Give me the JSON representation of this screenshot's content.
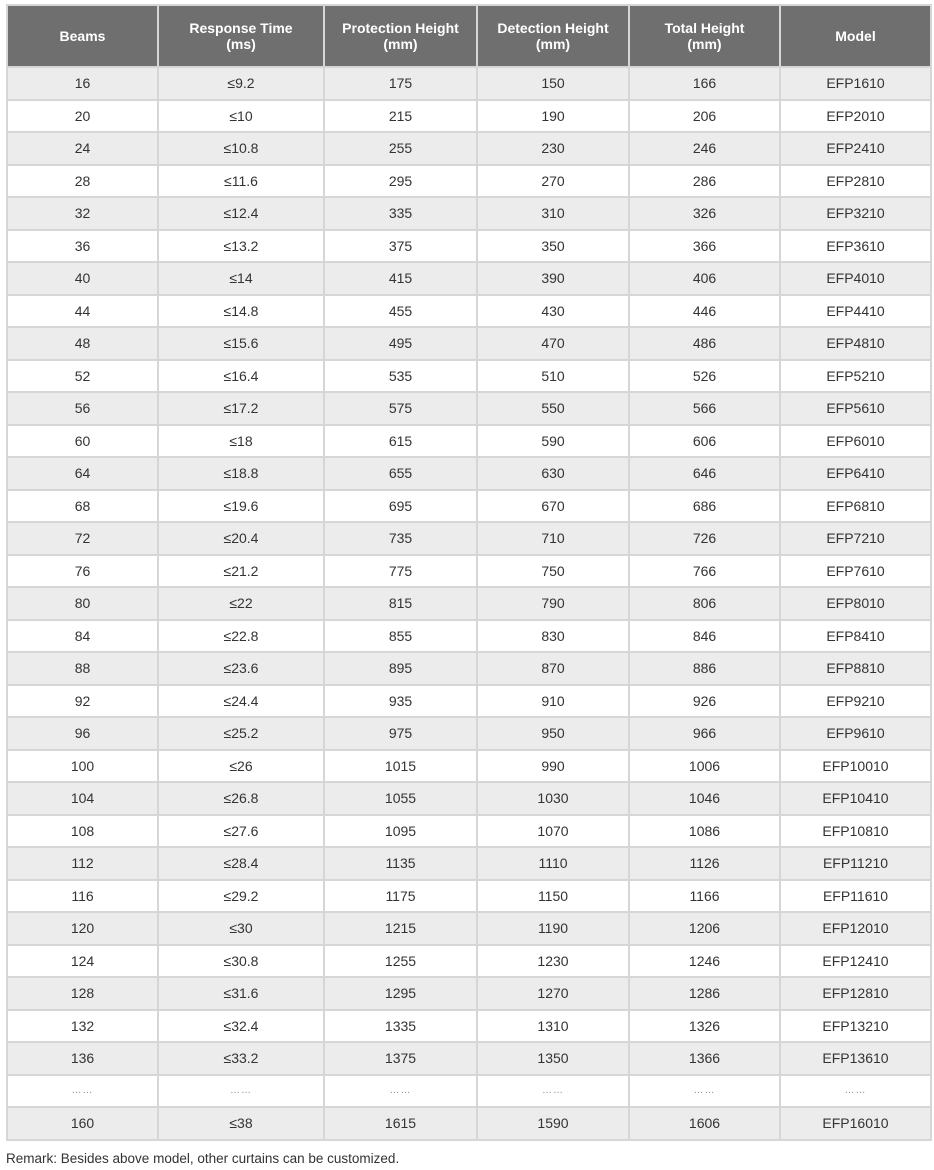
{
  "headers": [
    "Beams",
    "Response Time\n(ms)",
    "Protection Height\n(mm)",
    "Detection Height\n(mm)",
    "Total Height\n(mm)",
    "Model"
  ],
  "rows": [
    [
      "16",
      "≤9.2",
      "175",
      "150",
      "166",
      "EFP1610"
    ],
    [
      "20",
      "≤10",
      "215",
      "190",
      "206",
      "EFP2010"
    ],
    [
      "24",
      "≤10.8",
      "255",
      "230",
      "246",
      "EFP2410"
    ],
    [
      "28",
      "≤11.6",
      "295",
      "270",
      "286",
      "EFP2810"
    ],
    [
      "32",
      "≤12.4",
      "335",
      "310",
      "326",
      "EFP3210"
    ],
    [
      "36",
      "≤13.2",
      "375",
      "350",
      "366",
      "EFP3610"
    ],
    [
      "40",
      "≤14",
      "415",
      "390",
      "406",
      "EFP4010"
    ],
    [
      "44",
      "≤14.8",
      "455",
      "430",
      "446",
      "EFP4410"
    ],
    [
      "48",
      "≤15.6",
      "495",
      "470",
      "486",
      "EFP4810"
    ],
    [
      "52",
      "≤16.4",
      "535",
      "510",
      "526",
      "EFP5210"
    ],
    [
      "56",
      "≤17.2",
      "575",
      "550",
      "566",
      "EFP5610"
    ],
    [
      "60",
      "≤18",
      "615",
      "590",
      "606",
      "EFP6010"
    ],
    [
      "64",
      "≤18.8",
      "655",
      "630",
      "646",
      "EFP6410"
    ],
    [
      "68",
      "≤19.6",
      "695",
      "670",
      "686",
      "EFP6810"
    ],
    [
      "72",
      "≤20.4",
      "735",
      "710",
      "726",
      "EFP7210"
    ],
    [
      "76",
      "≤21.2",
      "775",
      "750",
      "766",
      "EFP7610"
    ],
    [
      "80",
      "≤22",
      "815",
      "790",
      "806",
      "EFP8010"
    ],
    [
      "84",
      "≤22.8",
      "855",
      "830",
      "846",
      "EFP8410"
    ],
    [
      "88",
      "≤23.6",
      "895",
      "870",
      "886",
      "EFP8810"
    ],
    [
      "92",
      "≤24.4",
      "935",
      "910",
      "926",
      "EFP9210"
    ],
    [
      "96",
      "≤25.2",
      "975",
      "950",
      "966",
      "EFP9610"
    ],
    [
      "100",
      "≤26",
      "1015",
      "990",
      "1006",
      "EFP10010"
    ],
    [
      "104",
      "≤26.8",
      "1055",
      "1030",
      "1046",
      "EFP10410"
    ],
    [
      "108",
      "≤27.6",
      "1095",
      "1070",
      "1086",
      "EFP10810"
    ],
    [
      "112",
      "≤28.4",
      "1135",
      "1110",
      "1126",
      "EFP11210"
    ],
    [
      "116",
      "≤29.2",
      "1175",
      "1150",
      "1166",
      "EFP11610"
    ],
    [
      "120",
      "≤30",
      "1215",
      "1190",
      "1206",
      "EFP12010"
    ],
    [
      "124",
      "≤30.8",
      "1255",
      "1230",
      "1246",
      "EFP12410"
    ],
    [
      "128",
      "≤31.6",
      "1295",
      "1270",
      "1286",
      "EFP12810"
    ],
    [
      "132",
      "≤32.4",
      "1335",
      "1310",
      "1326",
      "EFP13210"
    ],
    [
      "136",
      "≤33.2",
      "1375",
      "1350",
      "1366",
      "EFP13610"
    ],
    [
      "……",
      "……",
      "……",
      "……",
      "……",
      "……"
    ],
    [
      "160",
      "≤38",
      "1615",
      "1590",
      "1606",
      "EFP16010"
    ]
  ],
  "remark": "Remark: Besides above model, other curtains can be customized.",
  "colors": {
    "header_bg": "#6f6f6f",
    "stripe": "#ececec",
    "border": "#d6d6d6"
  }
}
